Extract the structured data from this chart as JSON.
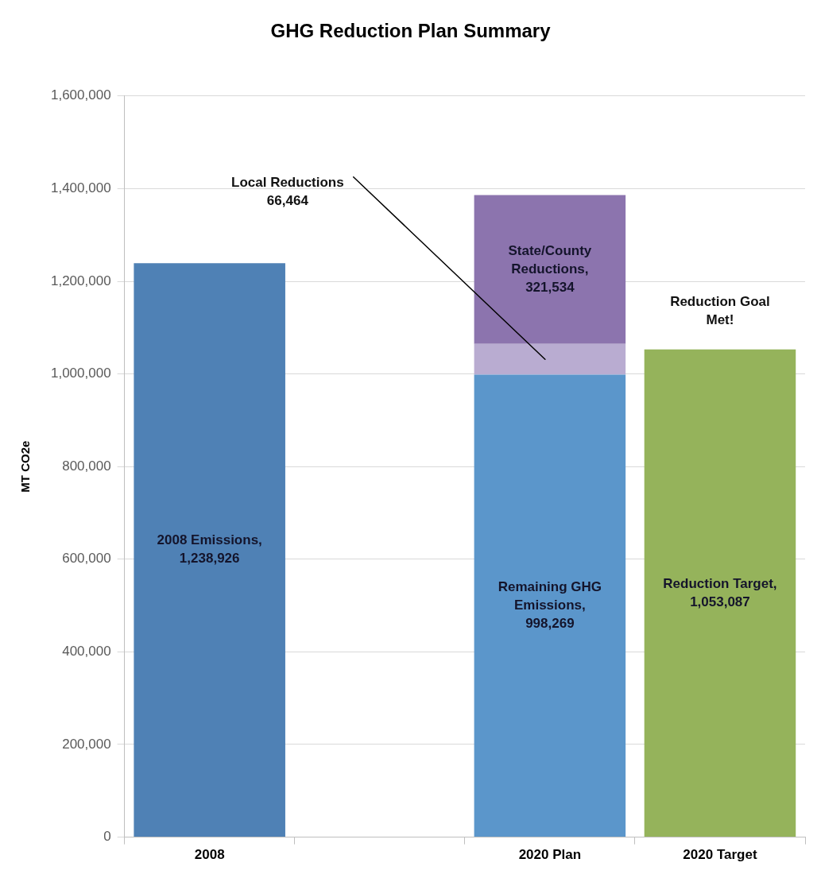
{
  "chart_data": {
    "type": "bar",
    "title": "GHG Reduction Plan Summary",
    "ylabel": "MT CO2e",
    "categories": [
      "2008",
      null,
      "2020 Plan",
      "2020 Target"
    ],
    "stacked": true,
    "series": [
      {
        "color": "#4f81b5",
        "values": [
          1238926,
          null,
          null,
          null
        ],
        "value_labels": [
          "2008 Emissions, 1,238,926",
          null,
          null,
          null
        ]
      },
      {
        "color": "#5b96cb",
        "values": [
          null,
          null,
          998269,
          null
        ],
        "value_labels": [
          null,
          null,
          "Remaining GHG Emissions, 998,269",
          null
        ]
      },
      {
        "color": "#b9acd1",
        "values": [
          null,
          null,
          66464,
          null
        ],
        "value_labels": [
          null,
          null,
          "Local Reductions 66,464",
          null
        ]
      },
      {
        "color": "#8c74ae",
        "values": [
          null,
          null,
          321534,
          null
        ],
        "value_labels": [
          null,
          null,
          "State/County Reductions, 321,534",
          null
        ]
      },
      {
        "color": "#95b35b",
        "values": [
          null,
          null,
          null,
          1053087
        ],
        "value_labels": [
          null,
          null,
          null,
          "Reduction Target, 1,053,087"
        ]
      }
    ],
    "ylim": [
      0,
      1600000
    ],
    "yticks": [
      {
        "value": 0,
        "label": "0"
      },
      {
        "value": 200000,
        "label": "200,000"
      },
      {
        "value": 400000,
        "label": "400,000"
      },
      {
        "value": 600000,
        "label": "600,000"
      },
      {
        "value": 800000,
        "label": "800,000"
      },
      {
        "value": 1000000,
        "label": "1,000,000"
      },
      {
        "value": 1200000,
        "label": "1,200,000"
      },
      {
        "value": 1400000,
        "label": "1,400,000"
      },
      {
        "value": 1600000,
        "label": "1,600,000"
      }
    ],
    "grid": "y",
    "annotations": [
      {
        "text": "Reduction Goal Met!",
        "x": "2020 Target",
        "y": 1053087
      }
    ]
  }
}
